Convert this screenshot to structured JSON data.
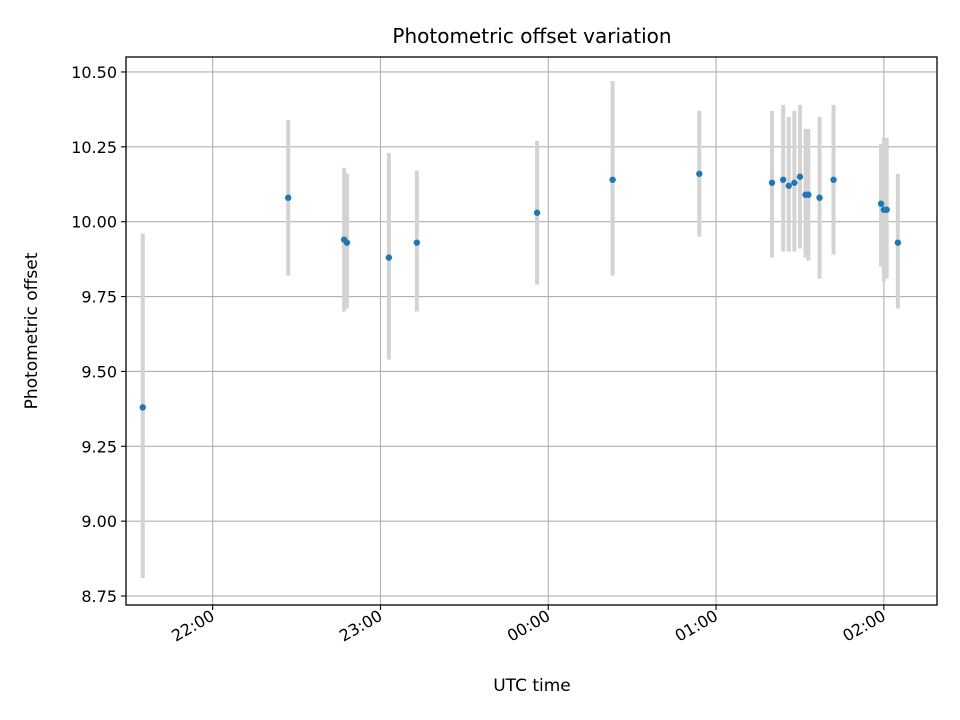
{
  "chart_data": {
    "type": "scatter",
    "title": "Photometric offset variation",
    "xlabel": "UTC time",
    "ylabel": "Photometric offset",
    "x_tick_labels": [
      "22:00",
      "23:00",
      "00:00",
      "01:00",
      "02:00"
    ],
    "y_tick_labels": [
      "8.75",
      "9.00",
      "9.25",
      "9.50",
      "9.75",
      "10.00",
      "10.25",
      "10.50"
    ],
    "y_ticks": [
      8.75,
      9.0,
      9.25,
      9.5,
      9.75,
      10.0,
      10.25,
      10.5
    ],
    "ylim": [
      8.72,
      10.55
    ],
    "xlim": [
      "21:29",
      "02:19"
    ],
    "x_ticks": [
      "22:00",
      "23:00",
      "00:00",
      "01:00",
      "02:00"
    ],
    "grid": true,
    "errorbar_color": "#d3d3d3",
    "marker_color": "#1f77b4",
    "points": [
      {
        "x": "21:35",
        "y": 9.38,
        "yerr_low": 8.81,
        "yerr_high": 9.96
      },
      {
        "x": "22:27",
        "y": 10.08,
        "yerr_low": 9.82,
        "yerr_high": 10.34
      },
      {
        "x": "22:47",
        "y": 9.94,
        "yerr_low": 9.7,
        "yerr_high": 10.18
      },
      {
        "x": "22:48",
        "y": 9.93,
        "yerr_low": 9.71,
        "yerr_high": 10.16
      },
      {
        "x": "23:03",
        "y": 9.88,
        "yerr_low": 9.54,
        "yerr_high": 10.23
      },
      {
        "x": "23:13",
        "y": 9.93,
        "yerr_low": 9.7,
        "yerr_high": 10.17
      },
      {
        "x": "23:56",
        "y": 10.03,
        "yerr_low": 9.79,
        "yerr_high": 10.27
      },
      {
        "x": "00:23",
        "y": 10.14,
        "yerr_low": 9.82,
        "yerr_high": 10.47
      },
      {
        "x": "00:54",
        "y": 10.16,
        "yerr_low": 9.95,
        "yerr_high": 10.37
      },
      {
        "x": "01:20",
        "y": 10.13,
        "yerr_low": 9.88,
        "yerr_high": 10.37
      },
      {
        "x": "01:24",
        "y": 10.14,
        "yerr_low": 9.9,
        "yerr_high": 10.39
      },
      {
        "x": "01:26",
        "y": 10.12,
        "yerr_low": 9.9,
        "yerr_high": 10.35
      },
      {
        "x": "01:28",
        "y": 10.13,
        "yerr_low": 9.9,
        "yerr_high": 10.37
      },
      {
        "x": "01:30",
        "y": 10.15,
        "yerr_low": 9.91,
        "yerr_high": 10.39
      },
      {
        "x": "01:32",
        "y": 10.09,
        "yerr_low": 9.88,
        "yerr_high": 10.31
      },
      {
        "x": "01:33",
        "y": 10.09,
        "yerr_low": 9.87,
        "yerr_high": 10.31
      },
      {
        "x": "01:37",
        "y": 10.08,
        "yerr_low": 9.81,
        "yerr_high": 10.35
      },
      {
        "x": "01:42",
        "y": 10.14,
        "yerr_low": 9.89,
        "yerr_high": 10.39
      },
      {
        "x": "01:59",
        "y": 10.06,
        "yerr_low": 9.85,
        "yerr_high": 10.26
      },
      {
        "x": "02:00",
        "y": 10.04,
        "yerr_low": 9.8,
        "yerr_high": 10.28
      },
      {
        "x": "02:01",
        "y": 10.04,
        "yerr_low": 9.81,
        "yerr_high": 10.28
      },
      {
        "x": "02:05",
        "y": 9.93,
        "yerr_low": 9.71,
        "yerr_high": 10.16
      }
    ]
  }
}
